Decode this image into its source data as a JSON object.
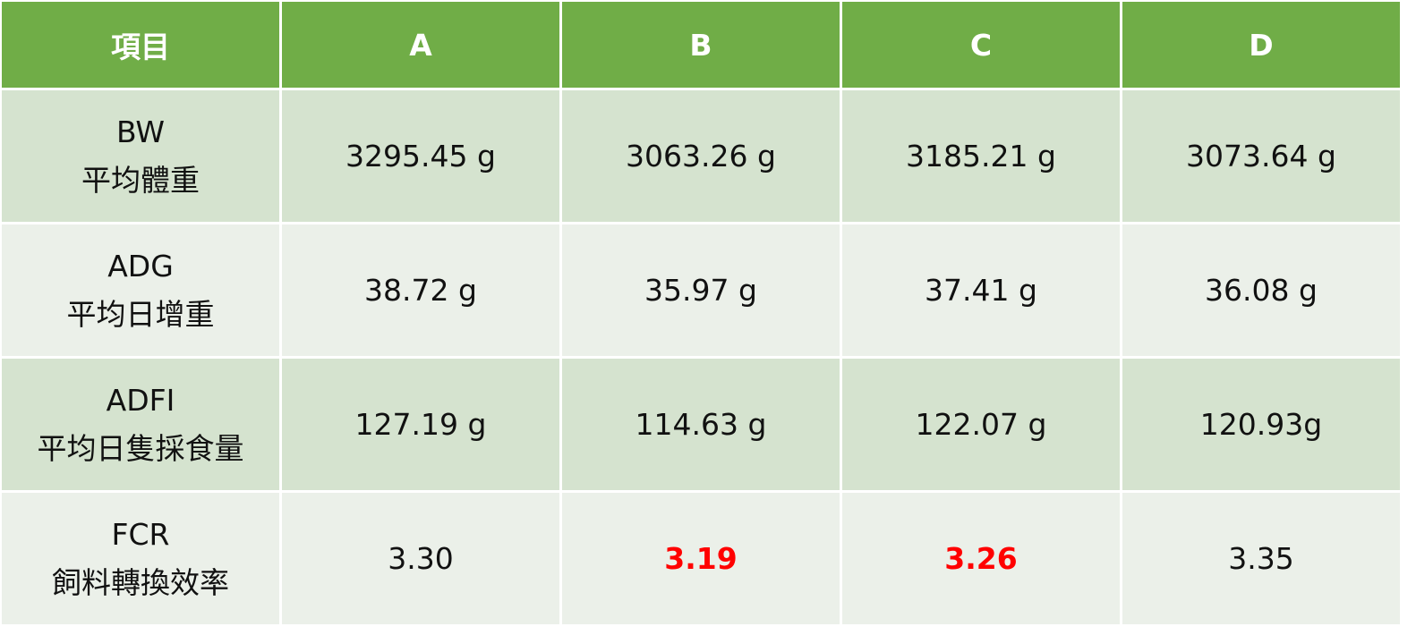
{
  "table": {
    "header": [
      "項目",
      "A",
      "B",
      "C",
      "D"
    ],
    "rows": [
      {
        "label": "BW",
        "sublabel": "平均體重",
        "values": [
          "3295.45 g",
          "3063.26 g",
          "3185.21 g",
          "3073.64 g"
        ]
      },
      {
        "label": "ADG",
        "sublabel": "平均日增重",
        "values": [
          "38.72 g",
          "35.97 g",
          "37.41 g",
          "36.08 g"
        ]
      },
      {
        "label": "ADFI",
        "sublabel": "平均日隻採食量",
        "values": [
          "127.19 g",
          "114.63 g",
          "122.07 g",
          "120.93g"
        ]
      },
      {
        "label": "FCR",
        "sublabel": "飼料轉換效率",
        "values": [
          "3.30",
          "3.19",
          "3.26",
          "3.35"
        ]
      }
    ]
  }
}
